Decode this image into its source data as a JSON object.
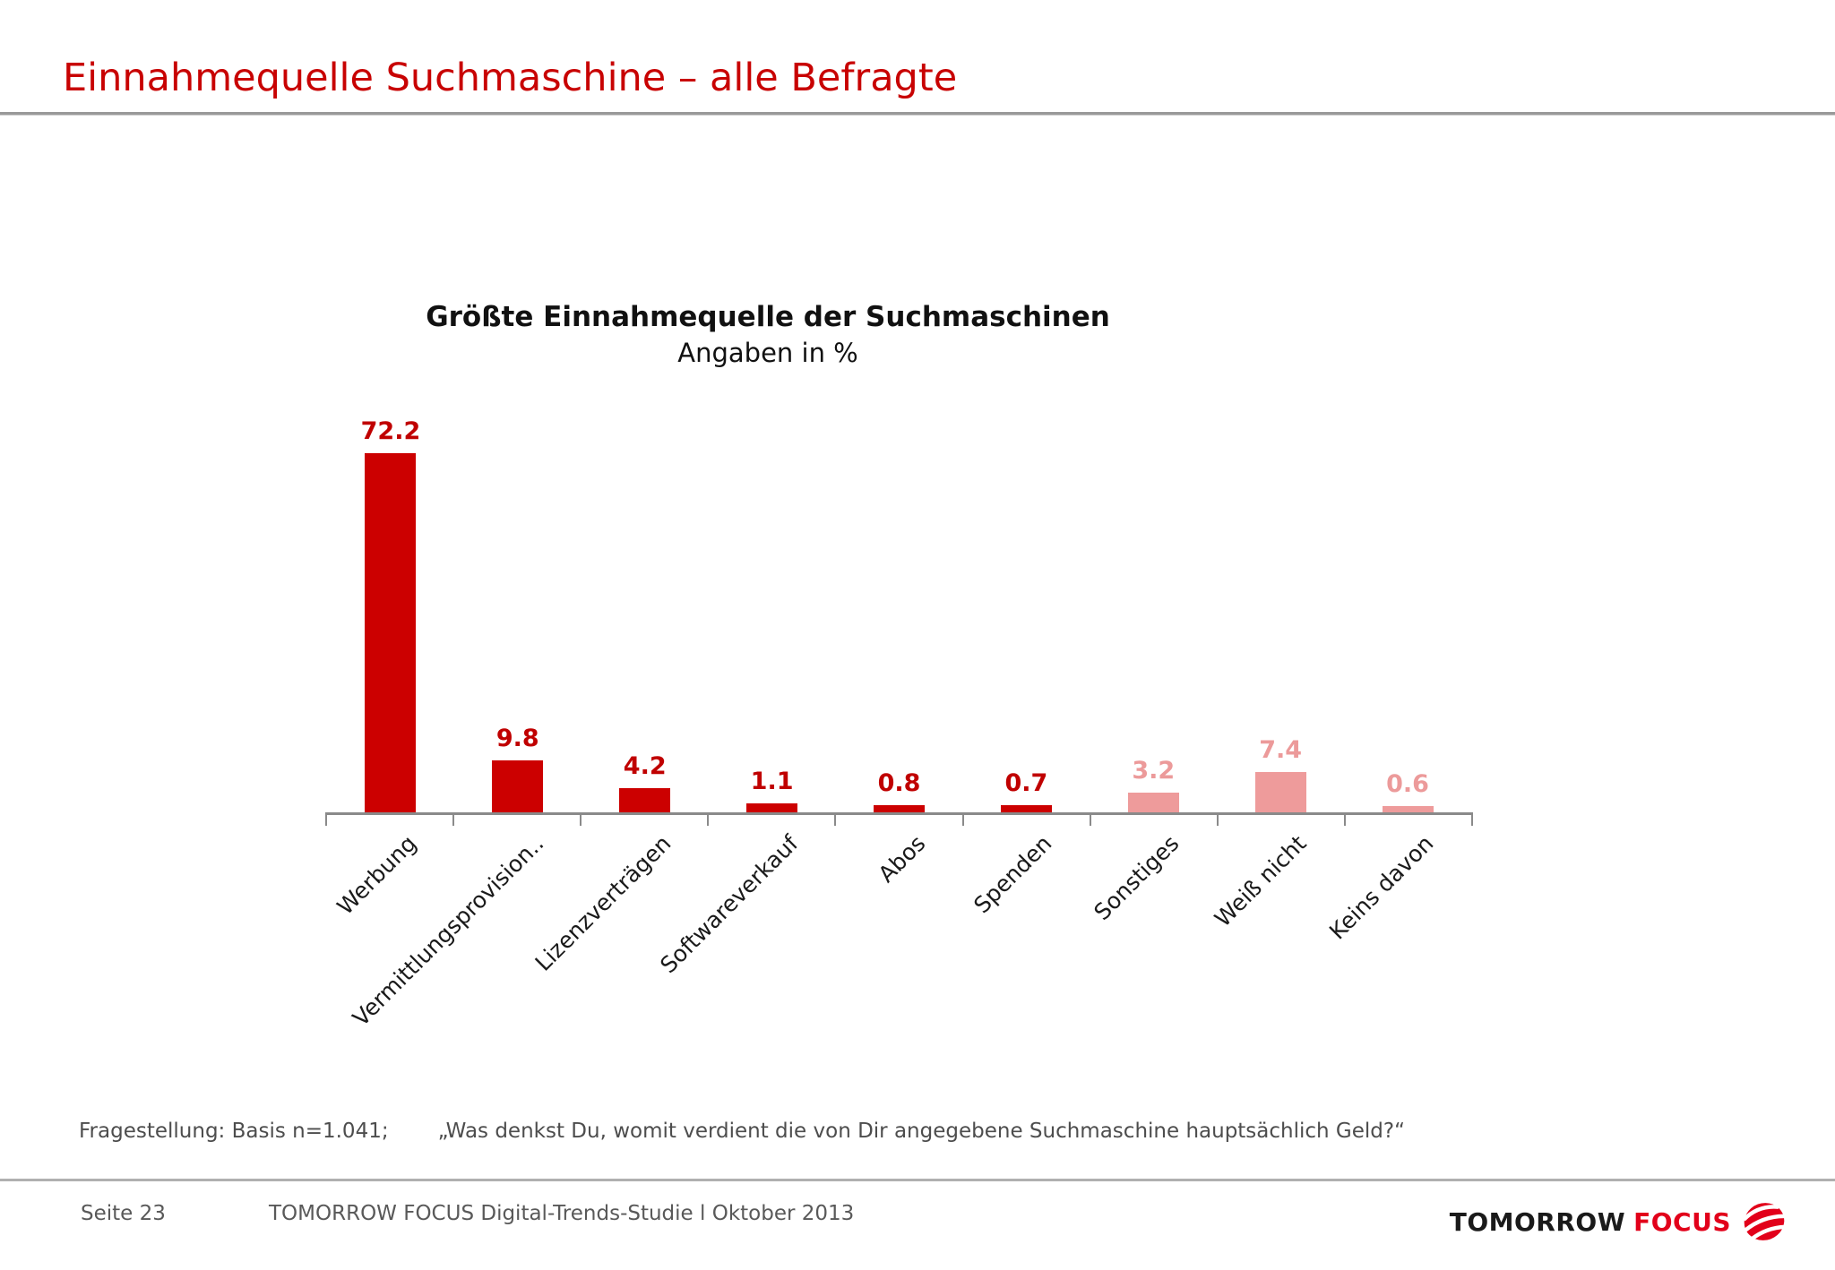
{
  "slide": {
    "title": "Einnahmequelle Suchmaschine – alle Befragte",
    "footnote": {
      "basis": "Fragestellung: Basis n=1.041;",
      "question": "„Was denkst Du, womit verdient die von Dir angegebene Suchmaschine hauptsächlich Geld?“"
    },
    "footer": {
      "page": "Seite 23",
      "study": "TOMORROW FOCUS Digital-Trends-Studie l Oktober 2013",
      "logo_tomorrow": "TOMORROW",
      "logo_focus": "FOCUS"
    }
  },
  "chart_data": {
    "type": "bar",
    "title": "Größte Einnahmequelle der Suchmaschinen",
    "subtitle": "Angaben in %",
    "categories": [
      "Werbung",
      "Vermittlungsprovision..",
      "Lizenzverträgen",
      "Softwareverkauf",
      "Abos",
      "Spenden",
      "Sonstiges",
      "Weiß nicht",
      "Keins davon"
    ],
    "values": [
      72.2,
      9.8,
      4.2,
      1.1,
      0.8,
      0.7,
      3.2,
      7.4,
      0.6
    ],
    "bar_colors": [
      "#cc0000",
      "#cc0000",
      "#cc0000",
      "#cc0000",
      "#cc0000",
      "#cc0000",
      "#ee9b9b",
      "#ee9b9b",
      "#ee9b9b"
    ],
    "value_label_colors": [
      "#c00000",
      "#c00000",
      "#c00000",
      "#c00000",
      "#c00000",
      "#c00000",
      "#ec9a9a",
      "#ec9a9a",
      "#ec9a9a"
    ],
    "xlabel": "",
    "ylabel": "",
    "ylim": [
      0,
      80
    ],
    "grid": false,
    "legend": "none",
    "value_labels": true,
    "axis_color": "#8a8a8a"
  },
  "colors": {
    "title_red": "#c80202",
    "bar_dark": "#cc0000",
    "bar_light": "#ee9b9b",
    "logo_red": "#e2001a"
  }
}
